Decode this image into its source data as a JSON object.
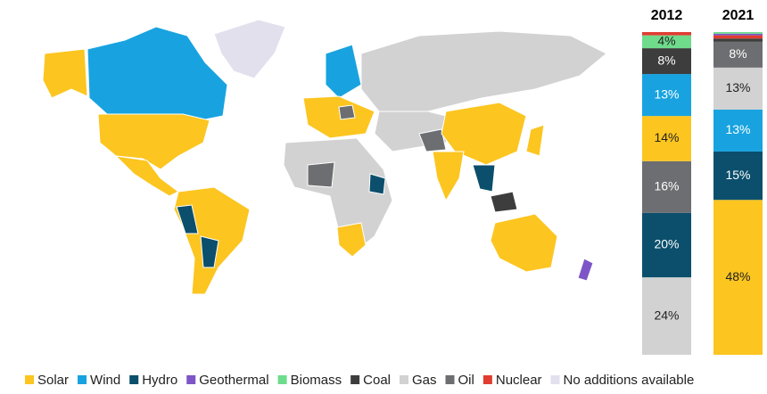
{
  "chart_data": {
    "type": "stacked_bar",
    "categories": [
      "2012",
      "2021"
    ],
    "series": [
      {
        "name": "Solar",
        "color": "#fcc520",
        "values": [
          14,
          48
        ],
        "value_labels": [
          "14%",
          "48%"
        ]
      },
      {
        "name": "Wind",
        "color": "#18a3e0",
        "values": [
          13,
          13
        ],
        "value_labels": [
          "13%",
          "13%"
        ]
      },
      {
        "name": "Hydro",
        "color": "#0b4f6c",
        "values": [
          20,
          15
        ],
        "value_labels": [
          "20%",
          "15%"
        ]
      },
      {
        "name": "Geothermal",
        "color": "#7d55c7",
        "values": [
          0,
          0.5
        ],
        "value_labels": [
          null,
          null
        ]
      },
      {
        "name": "Biomass",
        "color": "#6fdc8c",
        "values": [
          4,
          0.5
        ],
        "value_labels": [
          "4%",
          null
        ]
      },
      {
        "name": "Coal",
        "color": "#3d3d3d",
        "values": [
          8,
          1
        ],
        "value_labels": [
          "8%",
          null
        ]
      },
      {
        "name": "Gas",
        "color": "#d2d2d2",
        "values": [
          24,
          13
        ],
        "value_labels": [
          "24%",
          "13%"
        ]
      },
      {
        "name": "Oil",
        "color": "#6d6e71",
        "values": [
          16,
          8
        ],
        "value_labels": [
          "16%",
          "8%"
        ]
      },
      {
        "name": "Nuclear",
        "color": "#e03c31",
        "values": [
          1,
          1
        ],
        "value_labels": [
          null,
          null
        ]
      }
    ],
    "no_data_label": "No additions available",
    "no_data_color": "#e3e0ee",
    "ylim": [
      0,
      100
    ]
  }
}
